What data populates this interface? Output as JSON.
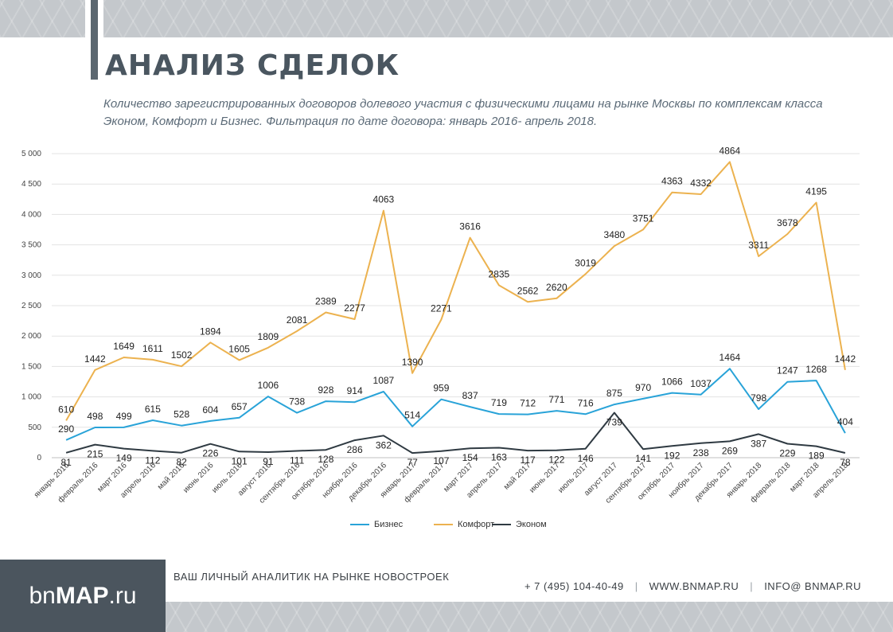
{
  "header": {
    "title": "АНАЛИЗ СДЕЛОК",
    "subtitle": "Количество зарегистрированных договоров долевого участия с физическими лицами на рынке Москвы по комплексам класса Эконом, Комфорт и Бизнес. Фильтрация по дате договора: январь 2016- апрель 2018."
  },
  "chart_data": {
    "type": "line",
    "title": "",
    "xlabel": "",
    "ylabel": "",
    "ylim": [
      0,
      5000
    ],
    "yticks": [
      0,
      500,
      1000,
      1500,
      2000,
      2500,
      3000,
      3500,
      4000,
      4500,
      5000
    ],
    "ytick_labels": [
      "0",
      "500",
      "1 000",
      "1 500",
      "2 000",
      "2 500",
      "3 000",
      "3 500",
      "4 000",
      "4 500",
      "5 000"
    ],
    "grid": true,
    "legend_position": "bottom",
    "categories": [
      "январь 2016",
      "февраль 2016",
      "март 2016",
      "апрель 2016",
      "май 2016",
      "июнь 2016",
      "июль 2016",
      "август 2016",
      "сентябрь 2016",
      "октябрь 2016",
      "ноябрь 2016",
      "декабрь 2016",
      "январь 2017",
      "февраль 2017",
      "март 2017",
      "апрель 2017",
      "май 2017",
      "июнь 2017",
      "июль 2017",
      "август 2017",
      "сентябрь 2017",
      "октябрь 2017",
      "ноябрь 2017",
      "декабрь 2017",
      "январь 2018",
      "февраль 2018",
      "март 2018",
      "апрель 2018"
    ],
    "series": [
      {
        "name": "Бизнес",
        "color": "#29a3d8",
        "values": [
          290,
          498,
          499,
          615,
          528,
          604,
          657,
          1006,
          738,
          928,
          914,
          1087,
          514,
          959,
          837,
          719,
          712,
          771,
          716,
          875,
          970,
          1066,
          1037,
          1464,
          798,
          1247,
          1268,
          404
        ]
      },
      {
        "name": "Комфорт",
        "color": "#ecb24f",
        "values": [
          610,
          1442,
          1649,
          1611,
          1502,
          1894,
          1605,
          1809,
          2081,
          2389,
          2277,
          4063,
          1390,
          2271,
          3616,
          2835,
          2562,
          2620,
          3019,
          3480,
          3751,
          4363,
          4332,
          4864,
          3311,
          3678,
          4195,
          1442
        ]
      },
      {
        "name": "Эконом",
        "color": "#2f3a42",
        "values": [
          81,
          215,
          149,
          112,
          82,
          226,
          101,
          91,
          111,
          128,
          286,
          362,
          77,
          107,
          154,
          163,
          117,
          122,
          146,
          739,
          141,
          192,
          238,
          269,
          387,
          229,
          189,
          78
        ]
      }
    ]
  },
  "footer": {
    "logo_light": "bn",
    "logo_bold": "MAP",
    "logo_suffix": ".ru",
    "tagline": "ВАШ ЛИЧНЫЙ АНАЛИТИК НА РЫНКЕ НОВОСТРОЕК",
    "phone": "+ 7 (495) 104-40-49",
    "website": "WWW.BNMAP.RU",
    "email": "INFO@ BNMAP.RU",
    "separator": "|"
  }
}
